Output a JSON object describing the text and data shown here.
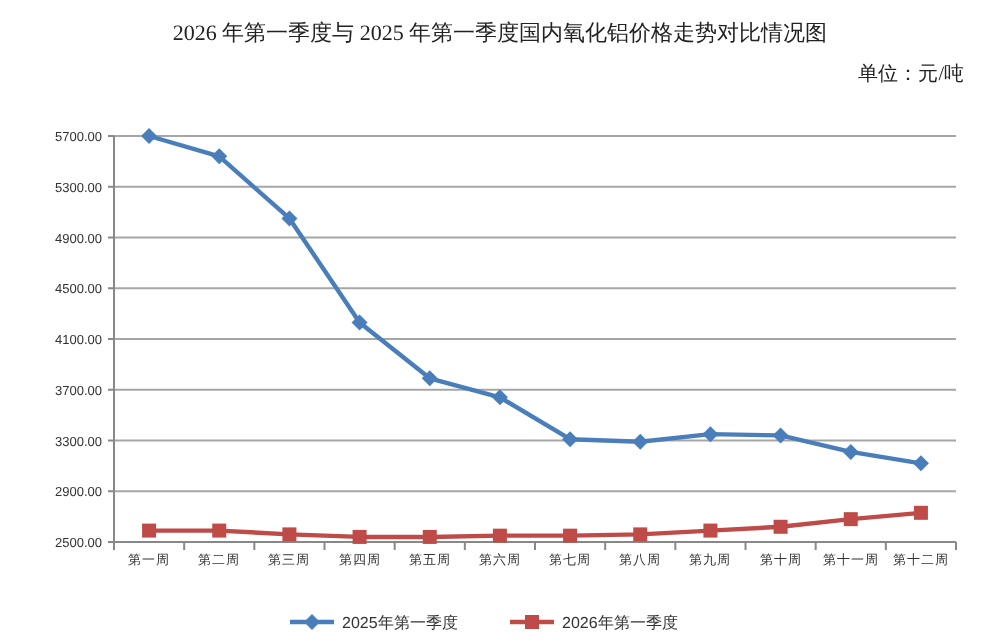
{
  "chart_data": {
    "type": "line",
    "title": "2026 年第一季度与 2025 年第一季度国内氧化铝价格走势对比情况图",
    "annotations": [
      "单位：元/吨"
    ],
    "categories": [
      "第一周",
      "第二周",
      "第三周",
      "第四周",
      "第五周",
      "第六周",
      "第七周",
      "第八周",
      "第九周",
      "第十周",
      "第十一周",
      "第十二周"
    ],
    "series": [
      {
        "name": "2025年第一季度",
        "color": "#4a7ebb",
        "marker": "diamond",
        "values": [
          5700,
          5540,
          5050,
          4230,
          3790,
          3640,
          3310,
          3290,
          3350,
          3340,
          3210,
          3120
        ]
      },
      {
        "name": "2026年第一季度",
        "color": "#be4b48",
        "marker": "square",
        "values": [
          2590,
          2590,
          2560,
          2540,
          2540,
          2550,
          2550,
          2560,
          2590,
          2620,
          2680,
          2730
        ]
      }
    ],
    "ylim": [
      2500,
      5700
    ],
    "yticks": [
      {
        "value": 2500,
        "label": "2500.00"
      },
      {
        "value": 2900,
        "label": "2900.00"
      },
      {
        "value": 3300,
        "label": "3300.00"
      },
      {
        "value": 3700,
        "label": "3700.00"
      },
      {
        "value": 4100,
        "label": "4100.00"
      },
      {
        "value": 4500,
        "label": "4500.00"
      },
      {
        "value": 4900,
        "label": "4900.00"
      },
      {
        "value": 5300,
        "label": "5300.00"
      },
      {
        "value": 5700,
        "label": "5700.00"
      }
    ],
    "grid": "y",
    "legend": "bottom",
    "line_style": "solid"
  }
}
